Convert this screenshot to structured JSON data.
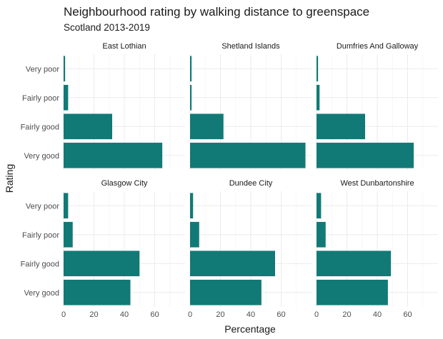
{
  "chart_data": {
    "type": "bar",
    "orientation": "horizontal",
    "title": "Neighbourhood rating by walking distance to greenspace",
    "subtitle": "Scotland 2013-2019",
    "xlabel": "Percentage",
    "ylabel": "Rating",
    "categories": [
      "Very poor",
      "Fairly poor",
      "Fairly good",
      "Very good"
    ],
    "xlim": [
      0,
      80
    ],
    "xticks": [
      0,
      20,
      40,
      60
    ],
    "bar_color": "#117a76",
    "grid": true,
    "facets": [
      {
        "name": "East Lothian",
        "values": [
          1,
          3,
          32,
          65
        ]
      },
      {
        "name": "Shetland Islands",
        "values": [
          1,
          1,
          22,
          76
        ]
      },
      {
        "name": "Dumfries And Galloway",
        "values": [
          1,
          2,
          32,
          64
        ]
      },
      {
        "name": "Glasgow City",
        "values": [
          3,
          6,
          50,
          44
        ]
      },
      {
        "name": "Dundee City",
        "values": [
          2,
          6,
          56,
          47
        ]
      },
      {
        "name": "West Dunbartonshire",
        "values": [
          3,
          6,
          49,
          47
        ]
      }
    ]
  }
}
